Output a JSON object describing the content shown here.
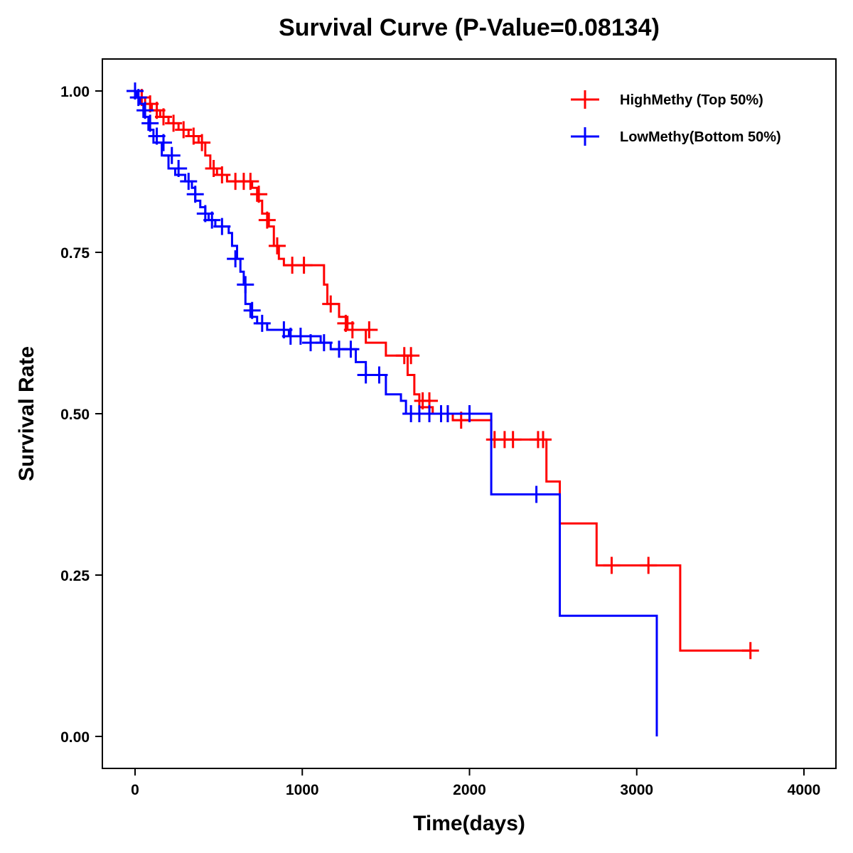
{
  "chart_data": {
    "type": "line",
    "subtype": "kaplan-meier",
    "title": "Survival Curve (P-Value=0.08134)",
    "xlabel": "Time(days)",
    "ylabel": "Survival Rate",
    "xlim": [
      -200,
      4200
    ],
    "ylim": [
      -0.05,
      1.05
    ],
    "xticks": [
      0,
      1000,
      2000,
      3000,
      4000
    ],
    "xtick_labels": [
      "0",
      "1000",
      "2000",
      "3000",
      "4000"
    ],
    "yticks": [
      0,
      0.25,
      0.5,
      0.75,
      1.0
    ],
    "ytick_labels": [
      "0.00",
      "0.25",
      "0.50",
      "0.75",
      "1.00"
    ],
    "grid": false,
    "legend_position": "top-right",
    "series": [
      {
        "name": "HighMethy (Top 50%)",
        "color": "#ff0000",
        "steps": [
          [
            0,
            1.0
          ],
          [
            20,
            0.99
          ],
          [
            60,
            0.98
          ],
          [
            100,
            0.97
          ],
          [
            150,
            0.96
          ],
          [
            200,
            0.95
          ],
          [
            260,
            0.94
          ],
          [
            320,
            0.93
          ],
          [
            380,
            0.92
          ],
          [
            420,
            0.9
          ],
          [
            450,
            0.88
          ],
          [
            490,
            0.87
          ],
          [
            550,
            0.86
          ],
          [
            700,
            0.85
          ],
          [
            730,
            0.83
          ],
          [
            760,
            0.81
          ],
          [
            800,
            0.79
          ],
          [
            830,
            0.76
          ],
          [
            860,
            0.74
          ],
          [
            890,
            0.73
          ],
          [
            1130,
            0.7
          ],
          [
            1150,
            0.67
          ],
          [
            1220,
            0.65
          ],
          [
            1270,
            0.63
          ],
          [
            1380,
            0.61
          ],
          [
            1500,
            0.59
          ],
          [
            1630,
            0.56
          ],
          [
            1670,
            0.53
          ],
          [
            1700,
            0.51
          ],
          [
            1780,
            0.5
          ],
          [
            1900,
            0.49
          ],
          [
            2130,
            0.46
          ],
          [
            2460,
            0.395
          ],
          [
            2540,
            0.33
          ],
          [
            2760,
            0.265
          ],
          [
            3260,
            0.133
          ],
          [
            3680,
            0.133
          ]
        ],
        "censored": [
          [
            40,
            0.99
          ],
          [
            90,
            0.98
          ],
          [
            130,
            0.97
          ],
          [
            170,
            0.96
          ],
          [
            230,
            0.95
          ],
          [
            290,
            0.94
          ],
          [
            350,
            0.93
          ],
          [
            400,
            0.92
          ],
          [
            470,
            0.88
          ],
          [
            520,
            0.87
          ],
          [
            600,
            0.86
          ],
          [
            650,
            0.86
          ],
          [
            690,
            0.86
          ],
          [
            740,
            0.84
          ],
          [
            790,
            0.8
          ],
          [
            850,
            0.76
          ],
          [
            940,
            0.73
          ],
          [
            1010,
            0.73
          ],
          [
            1170,
            0.67
          ],
          [
            1260,
            0.64
          ],
          [
            1300,
            0.63
          ],
          [
            1400,
            0.63
          ],
          [
            1610,
            0.59
          ],
          [
            1650,
            0.59
          ],
          [
            1720,
            0.52
          ],
          [
            1760,
            0.52
          ],
          [
            1870,
            0.5
          ],
          [
            1950,
            0.49
          ],
          [
            2150,
            0.46
          ],
          [
            2210,
            0.46
          ],
          [
            2260,
            0.46
          ],
          [
            2410,
            0.46
          ],
          [
            2440,
            0.46
          ],
          [
            2850,
            0.265
          ],
          [
            3070,
            0.265
          ],
          [
            3680,
            0.133
          ]
        ]
      },
      {
        "name": "LowMethy(Bottom 50%)",
        "color": "#0000ff",
        "steps": [
          [
            0,
            1.0
          ],
          [
            10,
            0.99
          ],
          [
            30,
            0.98
          ],
          [
            50,
            0.96
          ],
          [
            80,
            0.94
          ],
          [
            110,
            0.92
          ],
          [
            160,
            0.9
          ],
          [
            200,
            0.88
          ],
          [
            240,
            0.87
          ],
          [
            300,
            0.86
          ],
          [
            340,
            0.85
          ],
          [
            360,
            0.83
          ],
          [
            390,
            0.82
          ],
          [
            420,
            0.81
          ],
          [
            440,
            0.8
          ],
          [
            480,
            0.79
          ],
          [
            560,
            0.78
          ],
          [
            580,
            0.76
          ],
          [
            610,
            0.74
          ],
          [
            630,
            0.72
          ],
          [
            650,
            0.7
          ],
          [
            660,
            0.67
          ],
          [
            690,
            0.65
          ],
          [
            730,
            0.64
          ],
          [
            790,
            0.63
          ],
          [
            920,
            0.62
          ],
          [
            1110,
            0.61
          ],
          [
            1170,
            0.6
          ],
          [
            1320,
            0.58
          ],
          [
            1380,
            0.56
          ],
          [
            1500,
            0.53
          ],
          [
            1590,
            0.52
          ],
          [
            1620,
            0.5
          ],
          [
            2130,
            0.375
          ],
          [
            2540,
            0.187
          ],
          [
            3120,
            0.0
          ]
        ],
        "censored": [
          [
            0,
            1.0
          ],
          [
            20,
            0.99
          ],
          [
            60,
            0.97
          ],
          [
            90,
            0.95
          ],
          [
            130,
            0.93
          ],
          [
            170,
            0.92
          ],
          [
            220,
            0.9
          ],
          [
            260,
            0.88
          ],
          [
            320,
            0.86
          ],
          [
            360,
            0.84
          ],
          [
            420,
            0.81
          ],
          [
            460,
            0.8
          ],
          [
            520,
            0.79
          ],
          [
            600,
            0.74
          ],
          [
            660,
            0.7
          ],
          [
            700,
            0.66
          ],
          [
            760,
            0.64
          ],
          [
            890,
            0.63
          ],
          [
            930,
            0.62
          ],
          [
            990,
            0.62
          ],
          [
            1050,
            0.61
          ],
          [
            1130,
            0.61
          ],
          [
            1220,
            0.6
          ],
          [
            1290,
            0.6
          ],
          [
            1380,
            0.56
          ],
          [
            1460,
            0.56
          ],
          [
            1650,
            0.5
          ],
          [
            1700,
            0.5
          ],
          [
            1760,
            0.5
          ],
          [
            1830,
            0.5
          ],
          [
            1870,
            0.5
          ],
          [
            2000,
            0.5
          ],
          [
            2400,
            0.375
          ]
        ]
      }
    ]
  }
}
